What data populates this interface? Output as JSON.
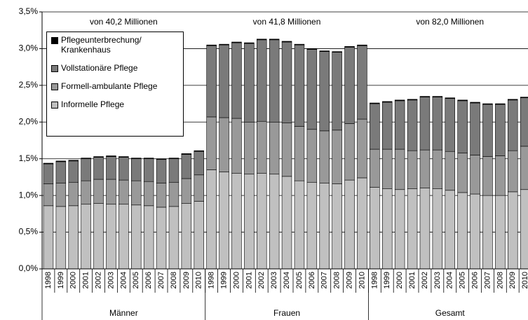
{
  "chart_data": {
    "type": "stacked-bar",
    "categories": [
      "1998",
      "1999",
      "2000",
      "2001",
      "2002",
      "2003",
      "2004",
      "2005",
      "2006",
      "2007",
      "2008",
      "2009",
      "2010",
      "1998",
      "1999",
      "2000",
      "2001",
      "2002",
      "2003",
      "2004",
      "2005",
      "2006",
      "2007",
      "2008",
      "2009",
      "2010",
      "1998",
      "1999",
      "2000",
      "2001",
      "2002",
      "2003",
      "2004",
      "2005",
      "2006",
      "2007",
      "2008",
      "2009",
      "2010"
    ],
    "groups": [
      {
        "label": "Männer",
        "annotation": "von 40,2 Millionen"
      },
      {
        "label": "Frauen",
        "annotation": "von 41,8 Millionen"
      },
      {
        "label": "Gesamt",
        "annotation": "von 82,0 Millionen"
      }
    ],
    "series": [
      {
        "name": "Informelle Pflege",
        "color": "#c0c0c0",
        "values": [
          0.86,
          0.85,
          0.86,
          0.88,
          0.89,
          0.88,
          0.88,
          0.87,
          0.86,
          0.84,
          0.85,
          0.89,
          0.92,
          1.35,
          1.32,
          1.3,
          1.29,
          1.3,
          1.29,
          1.26,
          1.2,
          1.18,
          1.17,
          1.16,
          1.21,
          1.24,
          1.11,
          1.09,
          1.08,
          1.09,
          1.1,
          1.09,
          1.07,
          1.04,
          1.02,
          1.0,
          1.0,
          1.05,
          1.08
        ]
      },
      {
        "name": "Formell-ambulante Pflege",
        "color": "#999999",
        "values": [
          0.3,
          0.32,
          0.32,
          0.32,
          0.33,
          0.34,
          0.33,
          0.33,
          0.33,
          0.33,
          0.33,
          0.34,
          0.36,
          0.72,
          0.74,
          0.75,
          0.71,
          0.71,
          0.71,
          0.73,
          0.74,
          0.72,
          0.71,
          0.73,
          0.77,
          0.8,
          0.52,
          0.54,
          0.55,
          0.52,
          0.52,
          0.53,
          0.53,
          0.54,
          0.53,
          0.53,
          0.54,
          0.56,
          0.59
        ]
      },
      {
        "name": "Vollstationäre Pflege",
        "color": "#7a7a7a",
        "values": [
          0.27,
          0.29,
          0.29,
          0.3,
          0.3,
          0.31,
          0.31,
          0.3,
          0.31,
          0.32,
          0.32,
          0.33,
          0.32,
          0.97,
          0.99,
          1.03,
          1.07,
          1.11,
          1.12,
          1.1,
          1.11,
          1.09,
          1.08,
          1.06,
          1.04,
          1.0,
          0.62,
          0.64,
          0.66,
          0.69,
          0.72,
          0.72,
          0.72,
          0.71,
          0.71,
          0.71,
          0.7,
          0.69,
          0.66
        ]
      },
      {
        "name": "Pflegeunterbrechung/ Krankenhaus",
        "color": "#000000",
        "values": [
          0.01,
          0.01,
          0.01,
          0.01,
          0.01,
          0.01,
          0.01,
          0.01,
          0.01,
          0.01,
          0.01,
          0.01,
          0.01,
          0.01,
          0.01,
          0.01,
          0.01,
          0.01,
          0.01,
          0.01,
          0.01,
          0.01,
          0.01,
          0.01,
          0.01,
          0.01,
          0.01,
          0.01,
          0.01,
          0.01,
          0.01,
          0.01,
          0.01,
          0.01,
          0.01,
          0.01,
          0.01,
          0.01,
          0.01
        ]
      }
    ],
    "ylim": [
      0,
      3.5
    ],
    "yticks": [
      {
        "value": 0,
        "label": "0,0%"
      },
      {
        "value": 0.5,
        "label": "0,5%"
      },
      {
        "value": 1,
        "label": "1,0%"
      },
      {
        "value": 1.5,
        "label": "1,5%"
      },
      {
        "value": 2,
        "label": "2,0%"
      },
      {
        "value": 2.5,
        "label": "2,5%"
      },
      {
        "value": 3,
        "label": "3,0%"
      },
      {
        "value": 3.5,
        "label": "3,5%"
      }
    ],
    "grid": true
  }
}
